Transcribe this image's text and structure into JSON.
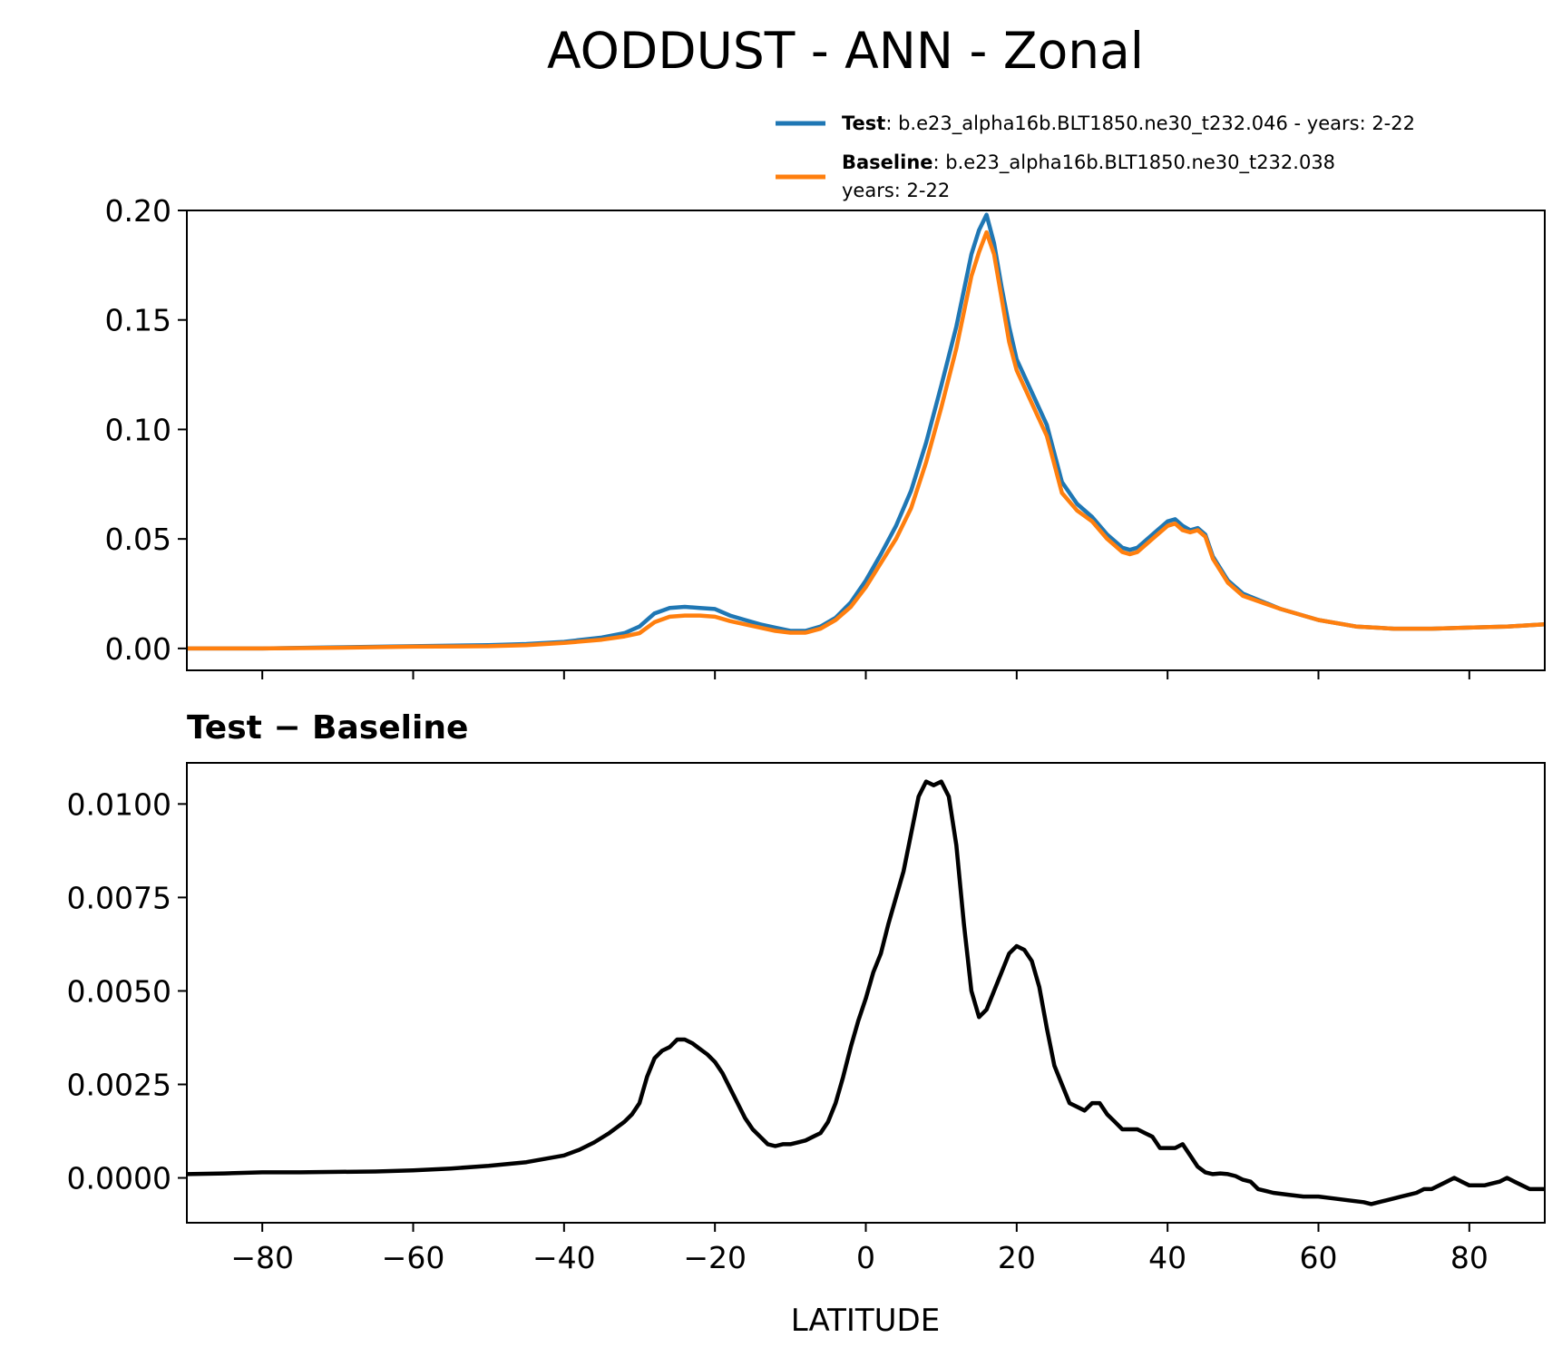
{
  "chart_data": {
    "title": "AODDUST - ANN - Zonal",
    "xlabel": "LATITUDE",
    "xlim": [
      -90,
      90
    ],
    "xticks": [
      -80,
      -60,
      -40,
      -20,
      0,
      20,
      40,
      60,
      80
    ],
    "xtick_labels": [
      "−80",
      "−60",
      "−40",
      "−20",
      "0",
      "20",
      "40",
      "60",
      "80"
    ],
    "panels": [
      {
        "type": "line",
        "title": "",
        "ylim": [
          -0.01,
          0.2
        ],
        "yticks": [
          0.0,
          0.05,
          0.1,
          0.15,
          0.2
        ],
        "ytick_labels": [
          "0.00",
          "0.05",
          "0.10",
          "0.15",
          "0.20"
        ],
        "legend": {
          "location": "upper-right",
          "entries": [
            {
              "label": "Test",
              "text": ": b.e23_alpha16b.BLT1850.ne30_t232.046 - years: 2-22",
              "text2": ""
            },
            {
              "label": "Baseline",
              "text": ": b.e23_alpha16b.BLT1850.ne30_t232.038",
              "text2": "years: 2-22"
            }
          ]
        },
        "series": [
          {
            "name": "Test",
            "color": "#1f77b4",
            "x": [
              -90,
              -80,
              -70,
              -60,
              -50,
              -45,
              -40,
              -35,
              -32,
              -30,
              -28,
              -26,
              -24,
              -22,
              -20,
              -18,
              -16,
              -14,
              -12,
              -10,
              -8,
              -6,
              -4,
              -2,
              0,
              2,
              4,
              6,
              8,
              10,
              12,
              14,
              15,
              16,
              17,
              18,
              19,
              20,
              22,
              24,
              26,
              28,
              30,
              32,
              34,
              35,
              36,
              38,
              40,
              41,
              42,
              43,
              44,
              45,
              46,
              48,
              50,
              55,
              60,
              65,
              70,
              75,
              80,
              85,
              90
            ],
            "values": [
              0.0,
              0.0,
              0.0005,
              0.001,
              0.0015,
              0.002,
              0.003,
              0.005,
              0.007,
              0.01,
              0.016,
              0.0185,
              0.019,
              0.0185,
              0.018,
              0.015,
              0.013,
              0.011,
              0.0095,
              0.008,
              0.008,
              0.01,
              0.014,
              0.021,
              0.031,
              0.043,
              0.056,
              0.072,
              0.094,
              0.12,
              0.147,
              0.18,
              0.191,
              0.198,
              0.185,
              0.165,
              0.147,
              0.132,
              0.117,
              0.102,
              0.076,
              0.066,
              0.06,
              0.052,
              0.046,
              0.045,
              0.046,
              0.052,
              0.058,
              0.059,
              0.056,
              0.054,
              0.055,
              0.052,
              0.042,
              0.031,
              0.025,
              0.018,
              0.013,
              0.01,
              0.009,
              0.009,
              0.0095,
              0.01,
              0.011
            ]
          },
          {
            "name": "Baseline",
            "color": "#ff7f0e",
            "x": [
              -90,
              -80,
              -70,
              -60,
              -50,
              -45,
              -40,
              -35,
              -32,
              -30,
              -28,
              -26,
              -24,
              -22,
              -20,
              -18,
              -16,
              -14,
              -12,
              -10,
              -8,
              -6,
              -4,
              -2,
              0,
              2,
              4,
              6,
              8,
              10,
              12,
              14,
              15,
              16,
              17,
              18,
              19,
              20,
              22,
              24,
              26,
              28,
              30,
              32,
              34,
              35,
              36,
              38,
              40,
              41,
              42,
              43,
              44,
              45,
              46,
              48,
              50,
              55,
              60,
              65,
              70,
              75,
              80,
              85,
              90
            ],
            "values": [
              0.0,
              0.0,
              0.0003,
              0.0008,
              0.001,
              0.0015,
              0.0025,
              0.004,
              0.0055,
              0.007,
              0.012,
              0.0145,
              0.015,
              0.015,
              0.0145,
              0.0125,
              0.011,
              0.0095,
              0.008,
              0.0072,
              0.0072,
              0.009,
              0.013,
              0.019,
              0.028,
              0.039,
              0.05,
              0.064,
              0.085,
              0.11,
              0.137,
              0.17,
              0.181,
              0.19,
              0.18,
              0.16,
              0.14,
              0.127,
              0.112,
              0.097,
              0.071,
              0.063,
              0.058,
              0.05,
              0.044,
              0.043,
              0.044,
              0.05,
              0.056,
              0.057,
              0.054,
              0.053,
              0.054,
              0.051,
              0.041,
              0.03,
              0.024,
              0.018,
              0.013,
              0.01,
              0.009,
              0.009,
              0.0095,
              0.01,
              0.011
            ]
          }
        ]
      },
      {
        "type": "line",
        "title": "Test − Baseline",
        "ylim": [
          -0.0012,
          0.0111
        ],
        "yticks": [
          0.0,
          0.0025,
          0.005,
          0.0075,
          0.01
        ],
        "ytick_labels": [
          "0.0000",
          "0.0025",
          "0.0050",
          "0.0075",
          "0.0100"
        ],
        "series": [
          {
            "name": "Test − Baseline",
            "color": "#000000",
            "x": [
              -90,
              -85,
              -80,
              -75,
              -70,
              -65,
              -60,
              -55,
              -50,
              -45,
              -40,
              -38,
              -36,
              -34,
              -32,
              -31,
              -30,
              -29,
              -28,
              -27,
              -26,
              -25,
              -24,
              -23,
              -22,
              -21,
              -20,
              -19,
              -18,
              -17,
              -16,
              -15,
              -14,
              -13,
              -12,
              -11,
              -10,
              -9,
              -8,
              -7,
              -6,
              -5,
              -4,
              -3,
              -2,
              -1,
              0,
              1,
              2,
              3,
              4,
              5,
              6,
              7,
              8,
              9,
              10,
              11,
              12,
              13,
              14,
              15,
              16,
              17,
              18,
              19,
              20,
              21,
              22,
              23,
              24,
              25,
              26,
              27,
              28,
              29,
              30,
              31,
              32,
              33,
              34,
              35,
              36,
              37,
              38,
              39,
              40,
              41,
              42,
              43,
              44,
              45,
              46,
              47,
              48,
              49,
              50,
              51,
              52,
              54,
              56,
              58,
              60,
              62,
              64,
              66,
              67,
              68,
              69,
              70,
              71,
              72,
              73,
              74,
              75,
              76,
              77,
              78,
              79,
              80,
              81,
              82,
              83,
              84,
              85,
              86,
              87,
              88,
              89,
              90
            ],
            "values": [
              0.0001,
              0.00012,
              0.00015,
              0.00015,
              0.00016,
              0.00017,
              0.0002,
              0.00025,
              0.00032,
              0.00042,
              0.0006,
              0.00075,
              0.00095,
              0.0012,
              0.0015,
              0.0017,
              0.002,
              0.0027,
              0.0032,
              0.0034,
              0.0035,
              0.0037,
              0.0037,
              0.0036,
              0.00345,
              0.0033,
              0.0031,
              0.0028,
              0.0024,
              0.002,
              0.0016,
              0.0013,
              0.0011,
              0.0009,
              0.00085,
              0.0009,
              0.0009,
              0.00095,
              0.001,
              0.0011,
              0.0012,
              0.0015,
              0.002,
              0.0027,
              0.0035,
              0.0042,
              0.0048,
              0.0055,
              0.006,
              0.0068,
              0.0075,
              0.0082,
              0.0092,
              0.0102,
              0.0106,
              0.0105,
              0.0106,
              0.0102,
              0.0089,
              0.0068,
              0.005,
              0.0043,
              0.0045,
              0.005,
              0.0055,
              0.006,
              0.0062,
              0.0061,
              0.0058,
              0.0051,
              0.004,
              0.003,
              0.0025,
              0.002,
              0.0019,
              0.0018,
              0.002,
              0.002,
              0.0017,
              0.0015,
              0.0013,
              0.0013,
              0.0013,
              0.0012,
              0.0011,
              0.0008,
              0.0008,
              0.0008,
              0.0009,
              0.0006,
              0.0003,
              0.00015,
              0.0001,
              0.00012,
              0.0001,
              5e-05,
              -5e-05,
              -0.0001,
              -0.0003,
              -0.0004,
              -0.00045,
              -0.0005,
              -0.0005,
              -0.00055,
              -0.0006,
              -0.00065,
              -0.0007,
              -0.00065,
              -0.0006,
              -0.00055,
              -0.0005,
              -0.00045,
              -0.0004,
              -0.0003,
              -0.0003,
              -0.0002,
              -0.0001,
              0.0,
              -0.0001,
              -0.0002,
              -0.0002,
              -0.0002,
              -0.00015,
              -0.0001,
              0.0,
              -0.0001,
              -0.0002,
              -0.0003,
              -0.0003,
              -0.0003
            ]
          }
        ]
      }
    ]
  }
}
